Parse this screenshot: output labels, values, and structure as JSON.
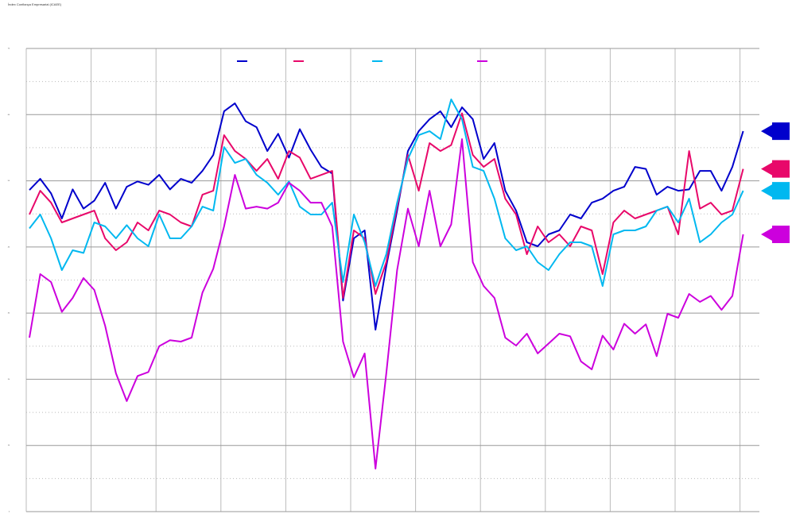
{
  "chart_data": {
    "type": "line",
    "title": "Índex Confiança Empresarial (ICAEE)",
    "ylim": [
      0,
      70
    ],
    "yticks": [
      0,
      10,
      20,
      30,
      40,
      50,
      60,
      70
    ],
    "grid": true,
    "series": [
      {
        "color": "#0000cc",
        "values": [
          48.6,
          50.3,
          48.1,
          44.3,
          48.7,
          45.8,
          47.0,
          49.7,
          45.8,
          49.1,
          49.9,
          49.4,
          50.9,
          48.7,
          50.3,
          49.7,
          51.5,
          53.9,
          60.5,
          61.7,
          59.0,
          58.1,
          54.5,
          57.1,
          53.5,
          57.8,
          54.7,
          52.1,
          51.1,
          31.9,
          41.3,
          42.5,
          27.5,
          37.1,
          45.5,
          54.5,
          57.5,
          59.3,
          60.5,
          58.1,
          61.1,
          59.3,
          53.3,
          55.7,
          48.5,
          45.5,
          40.7,
          40.1,
          41.9,
          42.5,
          44.9,
          44.3,
          46.7,
          47.3,
          48.5,
          49.1,
          52.1,
          51.8,
          47.9,
          49.1,
          48.5,
          48.7,
          51.5,
          51.5,
          48.5,
          52.1,
          57.5
        ]
      },
      {
        "color": "#e8086a",
        "values": [
          44.9,
          48.5,
          46.7,
          43.7,
          44.3,
          44.9,
          45.5,
          41.3,
          39.5,
          40.7,
          43.7,
          42.5,
          45.5,
          44.9,
          43.7,
          43.1,
          47.9,
          48.5,
          56.9,
          54.5,
          53.3,
          51.5,
          53.3,
          50.3,
          54.5,
          53.5,
          50.3,
          50.9,
          51.5,
          32.3,
          42.5,
          41.3,
          32.9,
          37.7,
          46.1,
          53.9,
          48.5,
          55.7,
          54.5,
          55.4,
          60.2,
          53.9,
          52.1,
          53.3,
          47.3,
          44.9,
          38.9,
          43.1,
          40.7,
          41.9,
          40.1,
          43.1,
          42.5,
          35.9,
          43.7,
          45.5,
          44.3,
          44.9,
          45.5,
          46.1,
          41.9,
          54.5,
          45.8,
          46.7,
          44.9,
          45.5,
          51.8
        ]
      },
      {
        "color": "#00b8f0",
        "values": [
          42.8,
          44.9,
          41.3,
          36.5,
          39.5,
          39.1,
          43.7,
          43.1,
          41.3,
          43.3,
          41.3,
          40.1,
          44.9,
          41.3,
          41.3,
          43.1,
          46.1,
          45.5,
          55.1,
          52.7,
          53.3,
          50.9,
          49.7,
          47.9,
          49.9,
          46.1,
          44.9,
          44.9,
          46.7,
          34.7,
          44.9,
          40.7,
          34.1,
          38.9,
          46.7,
          53.3,
          56.9,
          57.5,
          56.3,
          62.3,
          59.3,
          52.1,
          51.5,
          47.3,
          41.3,
          39.5,
          40.1,
          37.7,
          36.5,
          38.9,
          40.7,
          40.7,
          40.1,
          34.1,
          41.9,
          42.5,
          42.5,
          43.1,
          45.5,
          46.1,
          43.7,
          47.3,
          40.7,
          41.9,
          43.7,
          44.9,
          48.5
        ]
      },
      {
        "color": "#cc00dd",
        "values": [
          26.3,
          35.9,
          34.7,
          30.2,
          32.3,
          35.3,
          33.5,
          28.1,
          20.9,
          16.7,
          20.5,
          21.1,
          25.0,
          25.9,
          25.7,
          26.3,
          33.1,
          36.7,
          43.1,
          50.9,
          45.8,
          46.1,
          45.8,
          46.7,
          49.7,
          48.5,
          46.7,
          46.7,
          43.1,
          25.7,
          20.3,
          23.9,
          6.5,
          20.9,
          36.5,
          45.8,
          40.1,
          48.5,
          40.1,
          43.4,
          56.3,
          37.7,
          34.1,
          32.3,
          26.3,
          25.1,
          26.9,
          23.9,
          25.4,
          26.9,
          26.5,
          22.7,
          21.5,
          26.6,
          24.5,
          28.4,
          26.9,
          28.3,
          23.5,
          29.9,
          29.3,
          32.9,
          31.7,
          32.6,
          30.5,
          32.6,
          41.9
        ]
      }
    ]
  }
}
